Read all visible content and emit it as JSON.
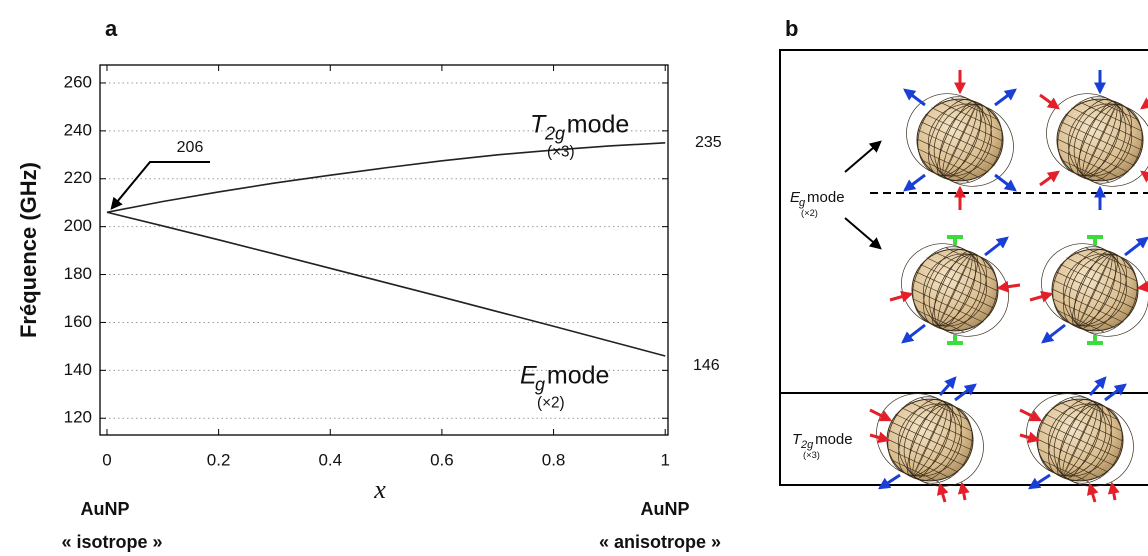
{
  "chart_data": {
    "type": "line",
    "panel_label": "a",
    "x": [
      0,
      0.1,
      0.2,
      0.3,
      0.4,
      0.5,
      0.6,
      0.7,
      0.8,
      0.9,
      1
    ],
    "series": [
      {
        "color": "#222222",
        "values": [
          206,
          210.5,
          214.5,
          218.2,
          221.5,
          224.6,
          227.5,
          230,
          232,
          233.7,
          235
        ]
      },
      {
        "color": "#222222",
        "values": [
          206,
          200.3,
          194.5,
          188.6,
          182.6,
          176.6,
          170.6,
          164.5,
          158.4,
          152.2,
          146
        ]
      }
    ],
    "xlim": [
      -0.0125,
      1.005
    ],
    "ylim": [
      113,
      267.5
    ],
    "xticks": [
      0,
      0.2,
      0.4,
      0.6,
      0.8,
      1
    ],
    "yticks": [
      120,
      140,
      160,
      180,
      200,
      220,
      240,
      260
    ],
    "grid": true,
    "xlabel": "x",
    "ylabel": "Fréquence (GHz)",
    "annotations": [
      "206",
      "235",
      "146"
    ],
    "t2g_label": {
      "symbol": "T",
      "subscript": "2g",
      "text": "mode",
      "multiplicity": "(×3)"
    },
    "eg_label": {
      "symbol": "E",
      "subscript": "g",
      "text": "mode",
      "multiplicity": "(×2)"
    },
    "footnotes": {
      "left": [
        "AuNP",
        "« isotrope »"
      ],
      "right": [
        "AuNP",
        "« anisotrope »"
      ]
    }
  },
  "panel_b": {
    "label": "b",
    "eg_label": {
      "symbol": "E",
      "subscript": "g",
      "text": "mode",
      "multiplicity": "(×2)"
    },
    "t2g_label": {
      "symbol": "T",
      "subscript": "2g",
      "text": "mode",
      "multiplicity": "(×3)"
    }
  }
}
